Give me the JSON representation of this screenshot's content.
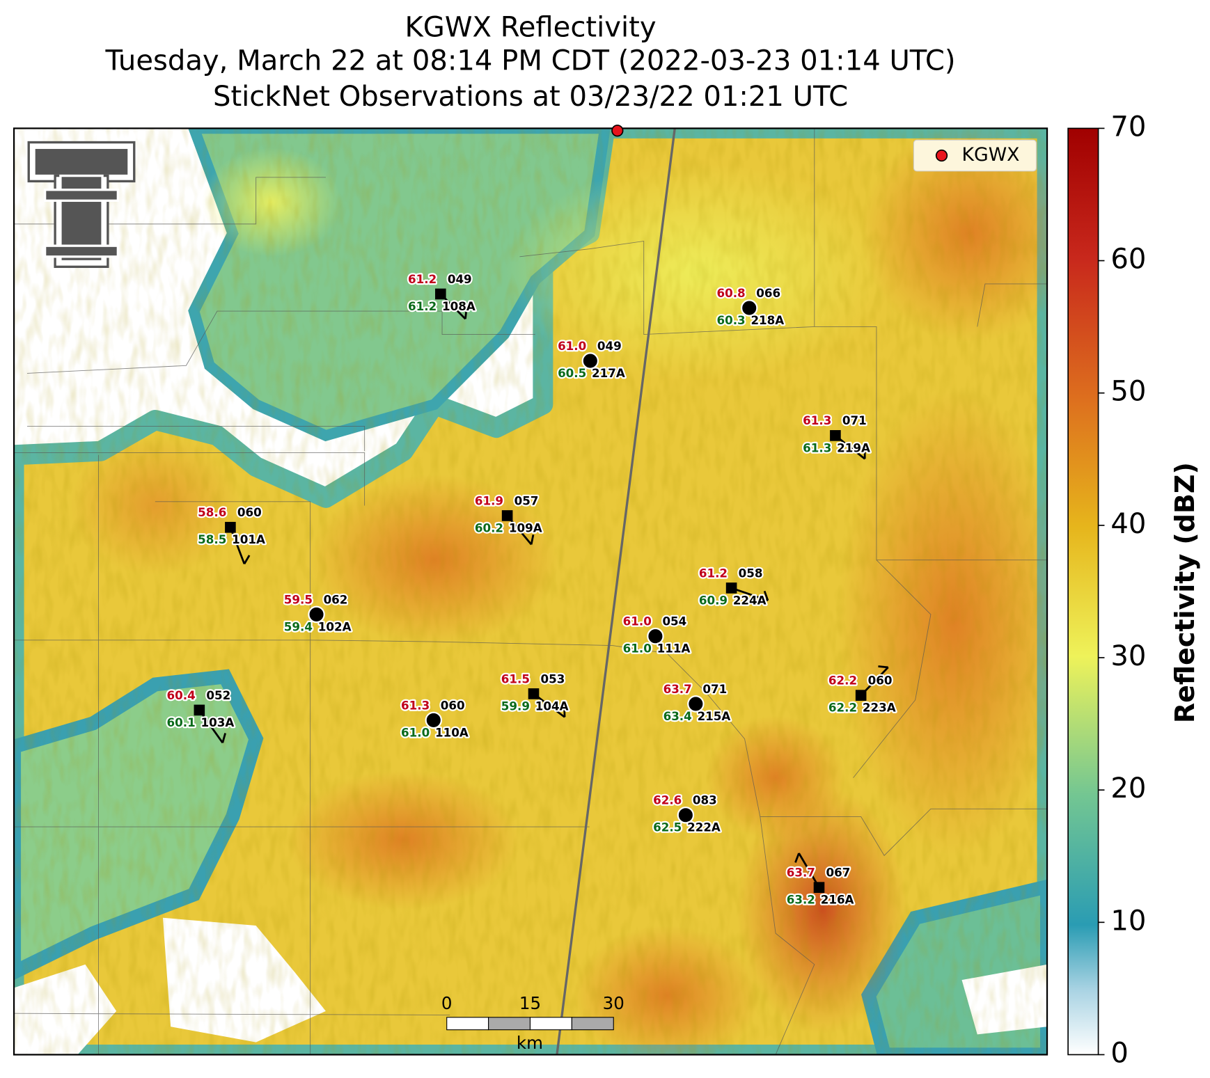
{
  "title_lines": [
    "KGWX Reflectivity",
    "Tuesday, March 22 at 08:14 PM CDT (2022-03-23 01:14 UTC)",
    "StickNet Observations at 03/23/22 01:21 UTC"
  ],
  "legend": {
    "label": "KGWX",
    "color": "#e8141c"
  },
  "colorbar": {
    "label": "Reflectivity (dBZ)",
    "lim": [
      0,
      70
    ],
    "ticks": [
      0,
      10,
      20,
      30,
      40,
      50,
      60,
      70
    ]
  },
  "scale_bar": {
    "ticks": [
      0,
      15,
      30
    ],
    "unit": "km"
  },
  "stations": [
    {
      "id": "108A",
      "marker": "square",
      "temperature": 61.2,
      "dewpoint": 61.2,
      "code": "049"
    },
    {
      "id": "218A",
      "marker": "circle",
      "temperature": 60.8,
      "dewpoint": 60.3,
      "code": "066"
    },
    {
      "id": "217A",
      "marker": "circle",
      "temperature": 61.0,
      "dewpoint": 60.5,
      "code": "049"
    },
    {
      "id": "219A",
      "marker": "square",
      "temperature": 61.3,
      "dewpoint": 61.3,
      "code": "071"
    },
    {
      "id": "101A",
      "marker": "square",
      "temperature": 58.6,
      "dewpoint": 58.5,
      "code": "060"
    },
    {
      "id": "109A",
      "marker": "square",
      "temperature": 61.9,
      "dewpoint": 60.2,
      "code": "057"
    },
    {
      "id": "224A",
      "marker": "square",
      "temperature": 61.2,
      "dewpoint": 60.9,
      "code": "058"
    },
    {
      "id": "102A",
      "marker": "circle",
      "temperature": 59.5,
      "dewpoint": 59.4,
      "code": "062"
    },
    {
      "id": "111A",
      "marker": "circle",
      "temperature": 61.0,
      "dewpoint": 61.0,
      "code": "054"
    },
    {
      "id": "103A",
      "marker": "square",
      "temperature": 60.4,
      "dewpoint": 60.1,
      "code": "052"
    },
    {
      "id": "110A",
      "marker": "circle",
      "temperature": 61.3,
      "dewpoint": 61.0,
      "code": "060"
    },
    {
      "id": "104A",
      "marker": "square",
      "temperature": 61.5,
      "dewpoint": 59.9,
      "code": "053"
    },
    {
      "id": "215A",
      "marker": "circle",
      "temperature": 63.7,
      "dewpoint": 63.4,
      "code": "071"
    },
    {
      "id": "223A",
      "marker": "square",
      "temperature": 62.2,
      "dewpoint": 62.2,
      "code": "060"
    },
    {
      "id": "222A",
      "marker": "circle",
      "temperature": 62.6,
      "dewpoint": 62.5,
      "code": "083"
    },
    {
      "id": "216A",
      "marker": "square",
      "temperature": 63.7,
      "dewpoint": 63.2,
      "code": "067"
    }
  ]
}
